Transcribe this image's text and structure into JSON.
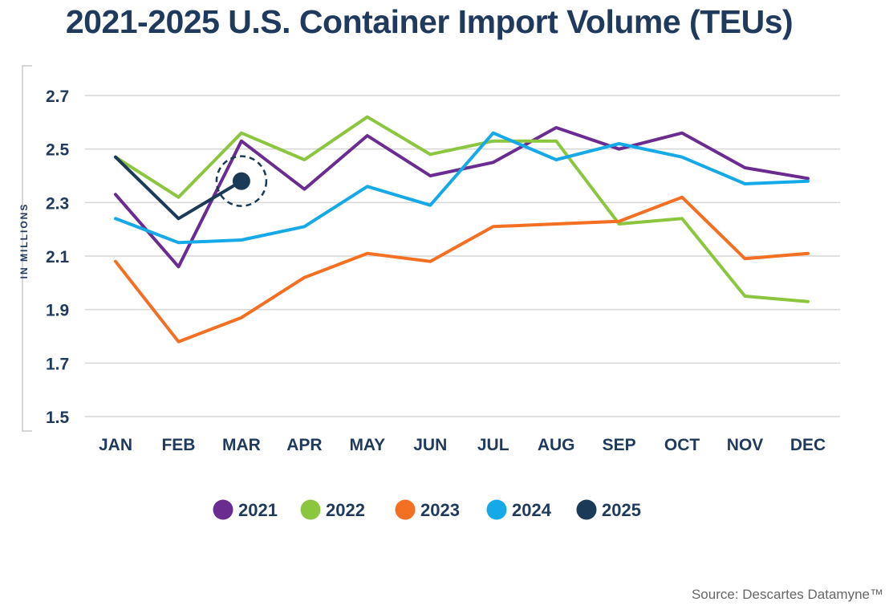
{
  "chart_data": {
    "type": "line",
    "title": "2021-2025 U.S. Container Import Volume (TEUs)",
    "ylabel": "IN MILLIONS",
    "xlabel": "",
    "categories": [
      "JAN",
      "FEB",
      "MAR",
      "APR",
      "MAY",
      "JUN",
      "JUL",
      "AUG",
      "SEP",
      "OCT",
      "NOV",
      "DEC"
    ],
    "y_ticks": [
      "1.5",
      "1.7",
      "1.9",
      "2.1",
      "2.3",
      "2.5",
      "2.7"
    ],
    "ylim": [
      1.5,
      2.7
    ],
    "grid": true,
    "legend_position": "bottom",
    "highlighted_point": {
      "series": "2025",
      "category": "MAR",
      "value": 2.38
    },
    "series": [
      {
        "name": "2021",
        "color": "#6a2c91",
        "values": [
          2.33,
          2.06,
          2.53,
          2.35,
          2.55,
          2.4,
          2.45,
          2.58,
          2.5,
          2.56,
          2.43,
          2.39
        ]
      },
      {
        "name": "2022",
        "color": "#8cc63f",
        "values": [
          2.47,
          2.32,
          2.56,
          2.46,
          2.62,
          2.48,
          2.53,
          2.53,
          2.22,
          2.24,
          1.95,
          1.93
        ]
      },
      {
        "name": "2023",
        "color": "#f36f21",
        "values": [
          2.08,
          1.78,
          1.87,
          2.02,
          2.11,
          2.08,
          2.21,
          2.22,
          2.23,
          2.32,
          2.09,
          2.11
        ]
      },
      {
        "name": "2024",
        "color": "#16a9e8",
        "values": [
          2.24,
          2.15,
          2.16,
          2.21,
          2.36,
          2.29,
          2.56,
          2.46,
          2.52,
          2.47,
          2.37,
          2.38
        ]
      },
      {
        "name": "2025",
        "color": "#1b3a57",
        "values": [
          2.47,
          2.24,
          2.38,
          null,
          null,
          null,
          null,
          null,
          null,
          null,
          null,
          null
        ]
      }
    ]
  },
  "source": "Source: Descartes Datamyne™"
}
